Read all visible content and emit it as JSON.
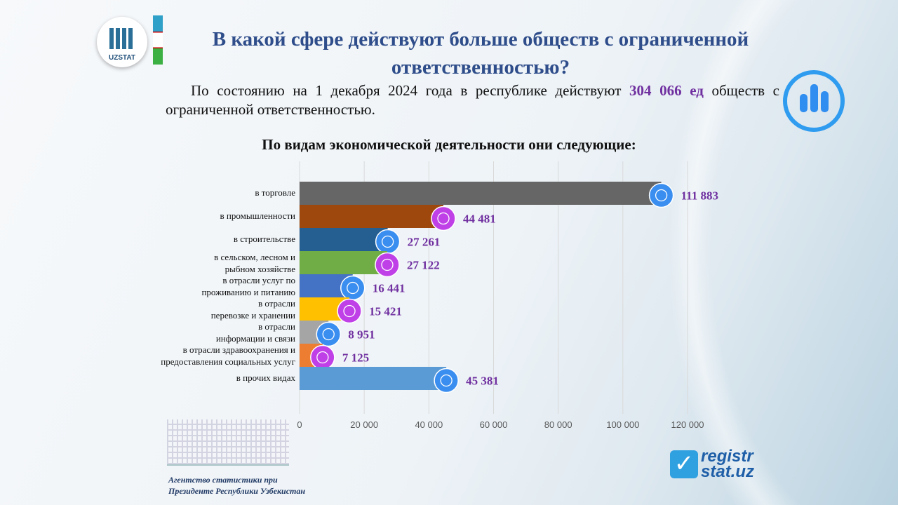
{
  "header": {
    "logo_text": "UZSTAT",
    "title": "В какой сфере действуют больше обществ с ограниченной ответственностью?"
  },
  "intro": {
    "before": "По состоянию на 1 декабря 2024 года в республике действуют ",
    "highlight": "304 066 ед",
    "after": " обществ с ограниченной ответственностью."
  },
  "chart_data": {
    "type": "bar",
    "orientation": "horizontal",
    "title": "По видам экономической деятельности они следующие:",
    "categories": [
      "в торговле",
      "в промышленности",
      "в строительстве",
      "в сельском, лесном и рыбном хозяйстве",
      "в отрасли услуг по проживанию и питанию",
      "в отрасли перевозке и хранении",
      "в отрасли информации и связи",
      "в отрасли здравоохранения и предоставления социальных услуг",
      "в прочих видах"
    ],
    "values": [
      111883,
      44481,
      27261,
      27122,
      16441,
      15421,
      8951,
      7125,
      45381
    ],
    "data_labels": [
      "111 883",
      "44 481",
      "27 261",
      "27 122",
      "16 441",
      "15 421",
      "8 951",
      "7 125",
      "45 381"
    ],
    "colors": [
      "#666666",
      "#9e480e",
      "#255e91",
      "#70ad47",
      "#4472c4",
      "#ffc000",
      "#a5a5a5",
      "#ed7d31",
      "#5b9bd5"
    ],
    "label_color": "#7030a0",
    "xlim": [
      0,
      120000
    ],
    "xticks": [
      "0",
      "20 000",
      "40 000",
      "60 000",
      "80 000",
      "100 000",
      "120 000"
    ],
    "grid": true
  },
  "footer": {
    "agency_line1": "Агентство статистики при",
    "agency_line2": "Президенте Республики Узбекистан",
    "site_line1": "registr",
    "site_line2": "stat.uz"
  }
}
